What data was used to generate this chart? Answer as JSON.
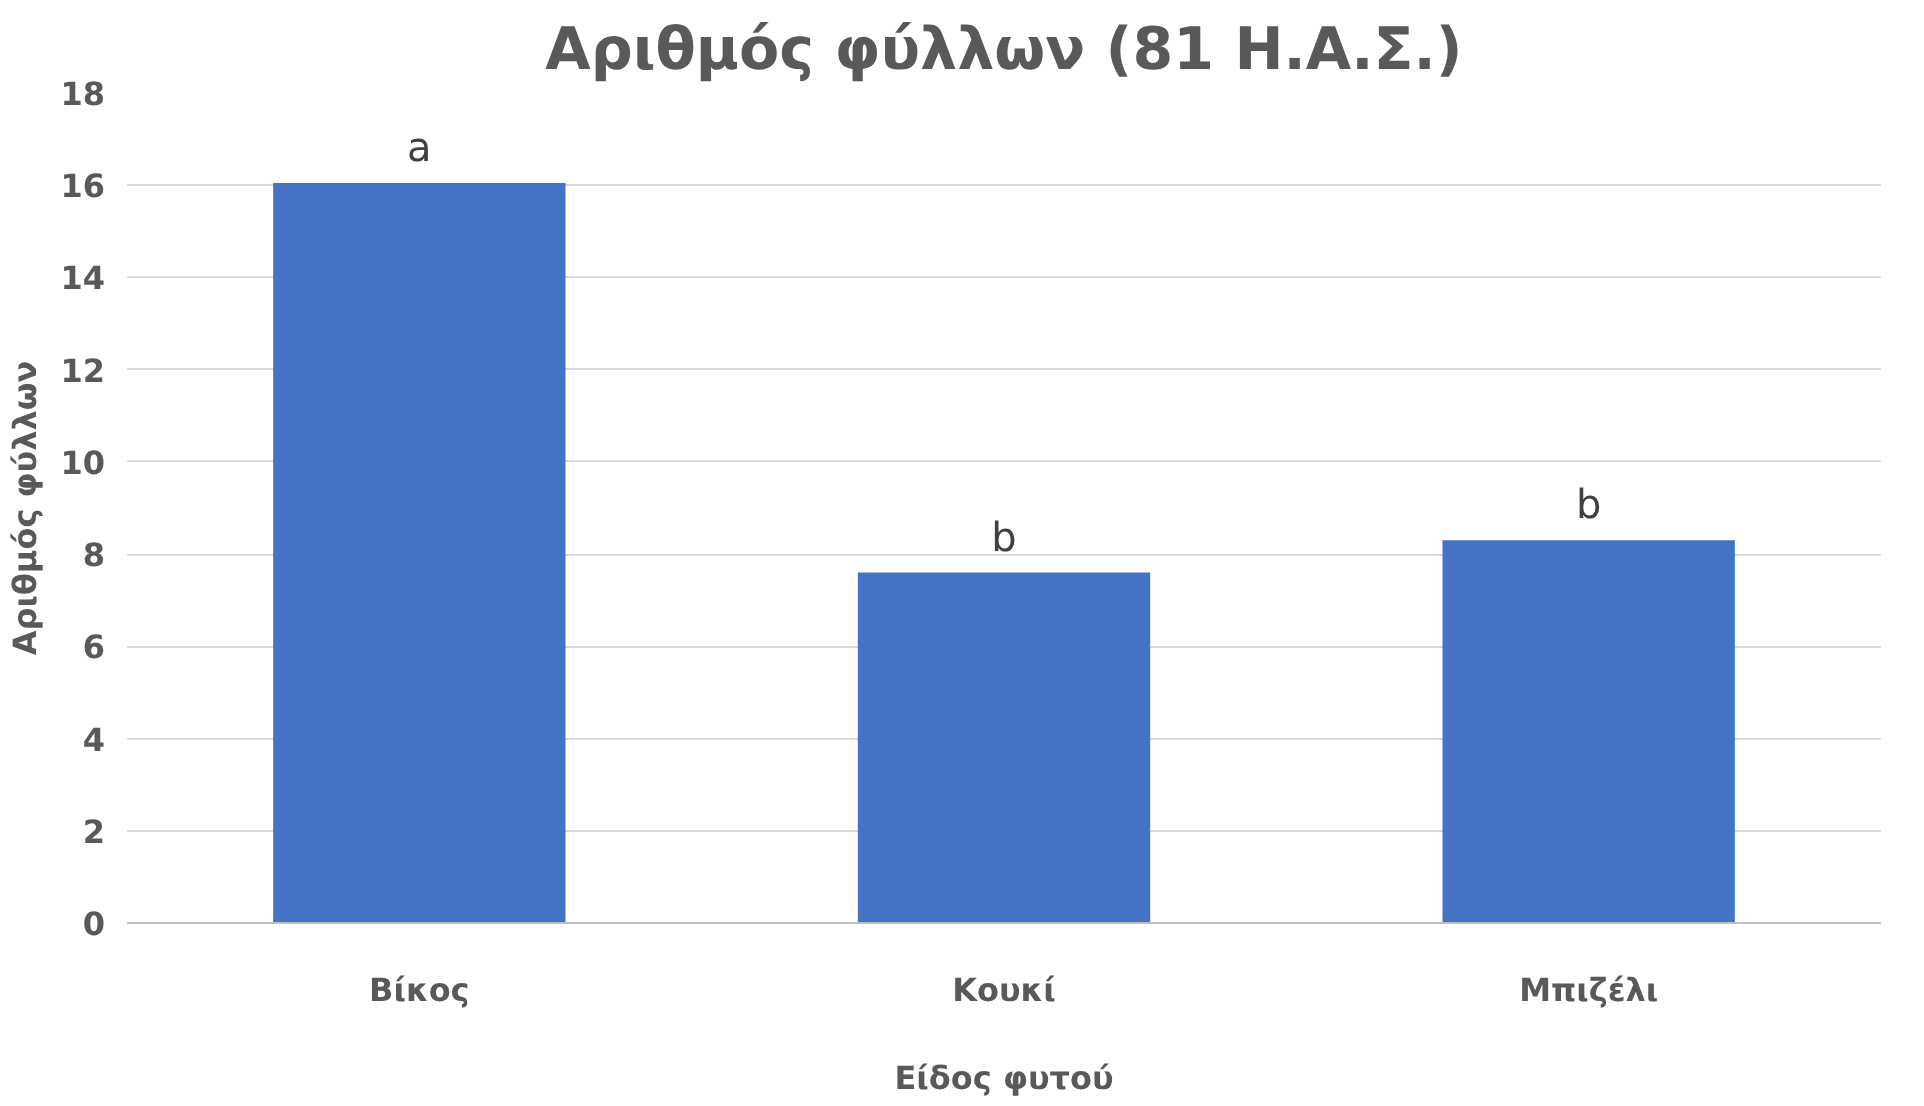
{
  "chart_data": {
    "type": "bar",
    "title": "Αριθμός φύλλων (81 Η.Α.Σ.)",
    "xlabel": "Είδος φυτού",
    "ylabel": "Αριθμός φύλλων",
    "categories": [
      "Βίκος",
      "Κουκί",
      "Μπιζέλι"
    ],
    "values": [
      16.05,
      7.6,
      8.3
    ],
    "color": "#4472c4",
    "ylim": [
      0,
      18
    ],
    "yticks": [
      0,
      2,
      4,
      6,
      8,
      10,
      12,
      14,
      16,
      18
    ],
    "grid": "y",
    "annotations": [
      {
        "text": "a",
        "x": "Βίκος",
        "y": 16.05
      },
      {
        "text": "b",
        "x": "Κουκί",
        "y": 7.6
      },
      {
        "text": "b",
        "x": "Μπιζέλι",
        "y": 8.3
      }
    ]
  }
}
